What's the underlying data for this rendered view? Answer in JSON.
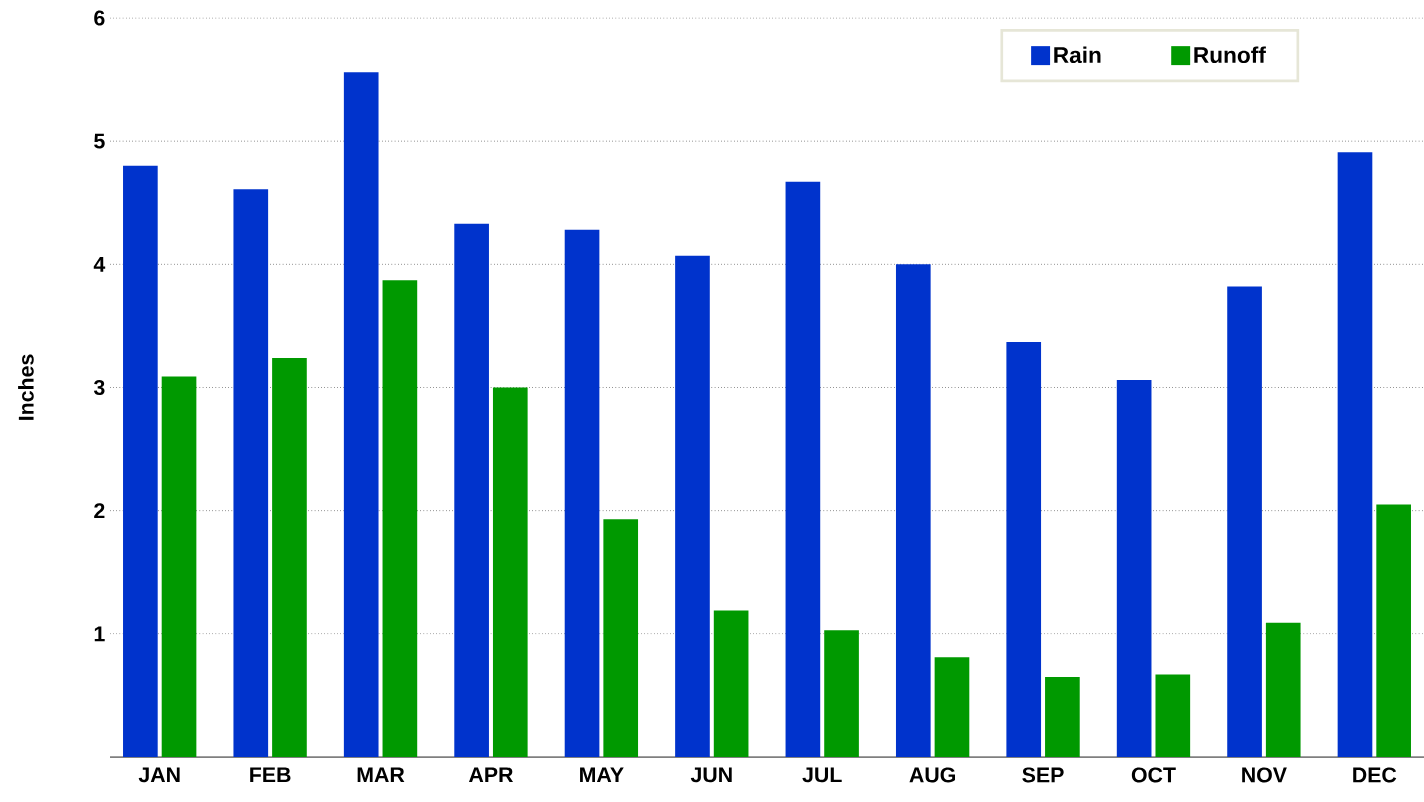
{
  "chart_data": {
    "type": "bar",
    "ylabel": "Inches",
    "categories": [
      "JAN",
      "FEB",
      "MAR",
      "APR",
      "MAY",
      "JUN",
      "JUL",
      "AUG",
      "SEP",
      "OCT",
      "NOV",
      "DEC"
    ],
    "series": [
      {
        "name": "Rain",
        "color": "#0033cc",
        "values": [
          4.8,
          4.61,
          5.56,
          4.33,
          4.28,
          4.07,
          4.67,
          4.0,
          3.37,
          3.06,
          3.82,
          4.91
        ]
      },
      {
        "name": "Runoff",
        "color": "#009900",
        "values": [
          3.09,
          3.24,
          3.87,
          3.0,
          1.93,
          1.19,
          1.03,
          0.81,
          0.65,
          0.67,
          1.09,
          2.05
        ]
      }
    ],
    "ylim": [
      0,
      6
    ],
    "yticks": [
      1,
      2,
      3,
      4,
      5,
      6
    ],
    "grid": "y",
    "legend": "top right"
  }
}
